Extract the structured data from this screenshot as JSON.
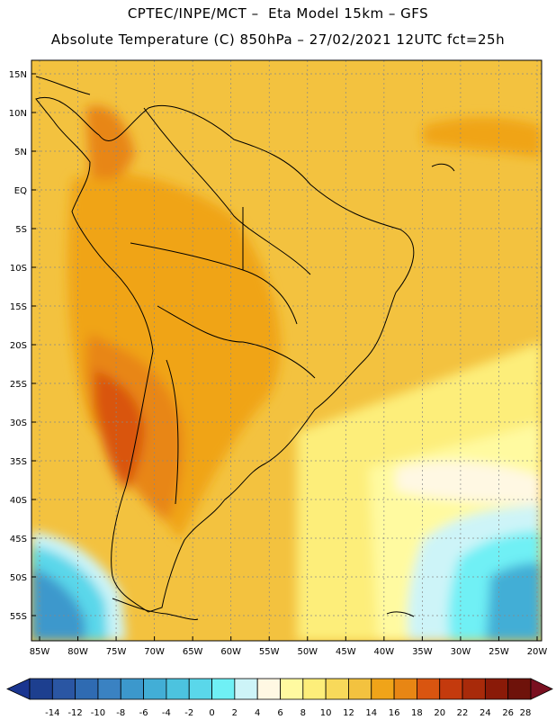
{
  "header": {
    "title_line1": "CPTEC/INPE/MCT –  Eta Model 15km – GFS",
    "title_line2": "Absolute Temperature (C) 850hPa – 27/02/2021 12UTC fct=25h"
  },
  "map": {
    "lat_labels": [
      "15N",
      "10N",
      "5N",
      "EQ",
      "5S",
      "10S",
      "15S",
      "20S",
      "25S",
      "30S",
      "35S",
      "40S",
      "45S",
      "50S",
      "55S"
    ],
    "lon_labels": [
      "85W",
      "80W",
      "75W",
      "70W",
      "65W",
      "60W",
      "55W",
      "50W",
      "45W",
      "40W",
      "35W",
      "30W",
      "25W",
      "20W"
    ],
    "colors": {
      "land_border": "#000000",
      "grid": "#888888"
    }
  },
  "colorbar": {
    "labels": [
      "-14",
      "-12",
      "-10",
      "-8",
      "-6",
      "-4",
      "-2",
      "0",
      "2",
      "4",
      "6",
      "8",
      "10",
      "12",
      "14",
      "16",
      "18",
      "20",
      "22",
      "24",
      "26",
      "28"
    ],
    "colors": [
      "#1d3f8f",
      "#2a56a3",
      "#2f6bb2",
      "#3a82c2",
      "#3c98cc",
      "#42aed6",
      "#4cc3df",
      "#5ad7ea",
      "#6ff0f5",
      "#cdf4f8",
      "#fff8e3",
      "#fffaa0",
      "#fdee7a",
      "#f8d95a",
      "#f3c23f",
      "#f0a419",
      "#e88614",
      "#d95510",
      "#c43a0d",
      "#a82a0a",
      "#8a1a08",
      "#6e120a"
    ],
    "under_color": "#1a3590",
    "over_color": "#7a1020"
  }
}
